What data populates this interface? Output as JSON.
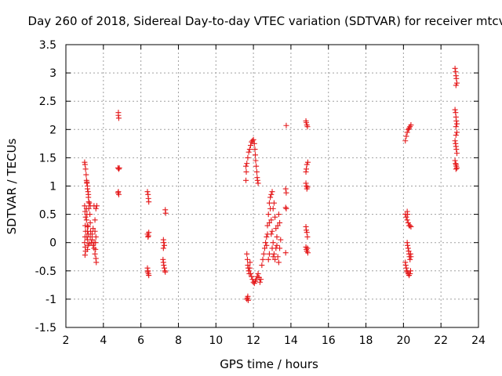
{
  "chart_data": {
    "type": "scatter",
    "title": "Day 260 of 2018, Sidereal Day-to-day VTEC variation (SDTVAR) for receiver mtcv",
    "xlabel": "GPS time / hours",
    "ylabel": "SDTVAR / TECUs",
    "xlim": [
      2,
      24
    ],
    "ylim": [
      -1.5,
      3.5
    ],
    "xticks": [
      2,
      4,
      6,
      8,
      10,
      12,
      14,
      16,
      18,
      20,
      22,
      24
    ],
    "yticks": [
      -1.5,
      -1,
      -0.5,
      0,
      0.5,
      1,
      1.5,
      2,
      2.5,
      3,
      3.5
    ],
    "xtick_labels": [
      "2",
      "4",
      "6",
      "8",
      "10",
      "12",
      "14",
      "16",
      "18",
      "20",
      "22",
      "24"
    ],
    "ytick_labels": [
      "-1.5",
      "-1",
      "-0.5",
      "0",
      "0.5",
      "1",
      "1.5",
      "2",
      "2.5",
      "3",
      "3.5"
    ],
    "grid": true,
    "marker": "plus",
    "color": "#e41a1c",
    "series": [
      {
        "name": "SDTVAR",
        "points": [
          [
            3.0,
            1.42
          ],
          [
            3.02,
            1.38
          ],
          [
            3.05,
            1.3
          ],
          [
            3.08,
            1.2
          ],
          [
            3.1,
            1.1
          ],
          [
            3.12,
            1.05
          ],
          [
            3.15,
            1.0
          ],
          [
            3.18,
            0.9
          ],
          [
            3.2,
            0.8
          ],
          [
            3.22,
            0.72
          ],
          [
            3.0,
            0.65
          ],
          [
            3.02,
            0.55
          ],
          [
            3.05,
            0.45
          ],
          [
            3.03,
            0.3
          ],
          [
            3.05,
            0.2
          ],
          [
            3.02,
            0.1
          ],
          [
            3.0,
            0.0
          ],
          [
            3.03,
            -0.08
          ],
          [
            3.05,
            -0.15
          ],
          [
            3.02,
            -0.22
          ],
          [
            3.1,
            0.6
          ],
          [
            3.12,
            0.5
          ],
          [
            3.1,
            0.4
          ],
          [
            3.14,
            0.3
          ],
          [
            3.15,
            0.2
          ],
          [
            3.12,
            0.1
          ],
          [
            3.16,
            0.05
          ],
          [
            3.18,
            -0.05
          ],
          [
            3.15,
            -0.12
          ],
          [
            3.2,
            0.15
          ],
          [
            3.25,
            0.7
          ],
          [
            3.3,
            0.65
          ],
          [
            3.28,
            0.5
          ],
          [
            3.3,
            0.35
          ],
          [
            3.32,
            0.2
          ],
          [
            3.3,
            0.1
          ],
          [
            3.35,
            0.0
          ],
          [
            3.4,
            0.05
          ],
          [
            3.45,
            -0.05
          ],
          [
            3.5,
            -0.1
          ],
          [
            3.55,
            -0.2
          ],
          [
            3.6,
            -0.28
          ],
          [
            3.62,
            -0.35
          ],
          [
            3.58,
            0.0
          ],
          [
            3.6,
            0.1
          ],
          [
            3.55,
            0.2
          ],
          [
            3.6,
            0.6
          ],
          [
            3.65,
            0.65
          ],
          [
            3.5,
            0.65
          ],
          [
            3.55,
            0.4
          ],
          [
            3.12,
            1.07
          ],
          [
            3.15,
            0.95
          ],
          [
            3.2,
            0.85
          ],
          [
            3.22,
            0.6
          ],
          [
            3.18,
            0.28
          ],
          [
            3.24,
            -0.02
          ],
          [
            3.4,
            0.15
          ],
          [
            3.45,
            0.25
          ],
          [
            3.5,
            0.0
          ],
          [
            3.58,
            -0.12
          ],
          [
            4.8,
            2.3
          ],
          [
            4.8,
            2.25
          ],
          [
            4.82,
            2.2
          ],
          [
            4.78,
            1.32
          ],
          [
            4.82,
            1.3
          ],
          [
            4.85,
            1.32
          ],
          [
            4.8,
            0.9
          ],
          [
            4.82,
            0.85
          ],
          [
            4.78,
            0.88
          ],
          [
            6.35,
            0.9
          ],
          [
            6.38,
            0.85
          ],
          [
            6.4,
            0.78
          ],
          [
            6.42,
            0.72
          ],
          [
            6.35,
            0.15
          ],
          [
            6.4,
            0.12
          ],
          [
            6.42,
            0.18
          ],
          [
            6.38,
            0.1
          ],
          [
            6.35,
            -0.45
          ],
          [
            6.38,
            -0.5
          ],
          [
            6.4,
            -0.55
          ],
          [
            6.42,
            -0.58
          ],
          [
            6.36,
            -0.52
          ],
          [
            7.2,
            0.05
          ],
          [
            7.22,
            0.0
          ],
          [
            7.25,
            -0.05
          ],
          [
            7.2,
            -0.1
          ],
          [
            7.18,
            -0.3
          ],
          [
            7.2,
            -0.35
          ],
          [
            7.22,
            -0.4
          ],
          [
            7.25,
            -0.45
          ],
          [
            7.28,
            -0.5
          ],
          [
            7.3,
            -0.52
          ],
          [
            7.3,
            0.58
          ],
          [
            7.32,
            0.52
          ],
          [
            11.6,
            1.35
          ],
          [
            11.65,
            1.4
          ],
          [
            11.7,
            1.5
          ],
          [
            11.75,
            1.6
          ],
          [
            11.8,
            1.65
          ],
          [
            11.85,
            1.72
          ],
          [
            11.9,
            1.78
          ],
          [
            11.95,
            1.8
          ],
          [
            12.0,
            1.82
          ],
          [
            12.05,
            1.75
          ],
          [
            12.08,
            1.65
          ],
          [
            12.1,
            1.55
          ],
          [
            12.12,
            1.45
          ],
          [
            12.15,
            1.35
          ],
          [
            12.18,
            1.25
          ],
          [
            12.2,
            1.15
          ],
          [
            12.22,
            1.1
          ],
          [
            12.25,
            1.05
          ],
          [
            11.6,
            1.1
          ],
          [
            11.62,
            1.25
          ],
          [
            11.65,
            -0.2
          ],
          [
            11.68,
            -0.3
          ],
          [
            11.7,
            -0.4
          ],
          [
            11.72,
            -0.45
          ],
          [
            11.75,
            -0.5
          ],
          [
            11.78,
            -0.55
          ],
          [
            11.8,
            -0.45
          ],
          [
            11.82,
            -0.35
          ],
          [
            11.85,
            -0.55
          ],
          [
            11.9,
            -0.6
          ],
          [
            11.95,
            -0.65
          ],
          [
            12.0,
            -0.7
          ],
          [
            12.05,
            -0.72
          ],
          [
            12.1,
            -0.68
          ],
          [
            12.15,
            -0.65
          ],
          [
            12.2,
            -0.6
          ],
          [
            12.25,
            -0.55
          ],
          [
            12.3,
            -0.62
          ],
          [
            12.35,
            -0.7
          ],
          [
            12.4,
            -0.65
          ],
          [
            11.65,
            -1.0
          ],
          [
            11.68,
            -0.98
          ],
          [
            11.7,
            -0.95
          ],
          [
            11.72,
            -1.02
          ],
          [
            12.45,
            -0.4
          ],
          [
            12.5,
            -0.3
          ],
          [
            12.55,
            -0.2
          ],
          [
            12.6,
            -0.1
          ],
          [
            12.65,
            0.0
          ],
          [
            12.7,
            0.1
          ],
          [
            12.75,
            0.3
          ],
          [
            12.8,
            0.5
          ],
          [
            12.85,
            0.7
          ],
          [
            12.9,
            0.8
          ],
          [
            12.95,
            0.85
          ],
          [
            13.0,
            0.9
          ],
          [
            12.9,
            0.6
          ],
          [
            12.95,
            0.4
          ],
          [
            13.0,
            0.2
          ],
          [
            13.05,
            0.0
          ],
          [
            13.1,
            -0.2
          ],
          [
            13.15,
            -0.3
          ],
          [
            13.2,
            -0.1
          ],
          [
            13.25,
            0.1
          ],
          [
            13.3,
            0.3
          ],
          [
            13.35,
            0.5
          ],
          [
            13.4,
            0.35
          ],
          [
            13.0,
            -0.1
          ],
          [
            12.85,
            -0.2
          ],
          [
            12.8,
            -0.3
          ],
          [
            13.05,
            0.6
          ],
          [
            13.1,
            0.7
          ],
          [
            13.15,
            0.45
          ],
          [
            13.2,
            0.25
          ],
          [
            13.25,
            -0.05
          ],
          [
            13.3,
            -0.25
          ],
          [
            13.35,
            -0.35
          ],
          [
            13.4,
            -0.1
          ],
          [
            13.45,
            0.05
          ],
          [
            12.7,
            -0.05
          ],
          [
            12.75,
            0.15
          ],
          [
            12.85,
            0.35
          ],
          [
            12.95,
            0.15
          ],
          [
            13.05,
            -0.25
          ],
          [
            13.75,
            2.07
          ],
          [
            13.72,
            0.95
          ],
          [
            13.75,
            0.88
          ],
          [
            13.72,
            0.62
          ],
          [
            13.75,
            0.6
          ],
          [
            13.72,
            -0.18
          ],
          [
            14.8,
            2.15
          ],
          [
            14.82,
            2.12
          ],
          [
            14.85,
            2.08
          ],
          [
            14.88,
            2.05
          ],
          [
            14.8,
            1.25
          ],
          [
            14.82,
            1.3
          ],
          [
            14.85,
            1.38
          ],
          [
            14.9,
            1.42
          ],
          [
            14.8,
            1.05
          ],
          [
            14.82,
            1.0
          ],
          [
            14.85,
            0.95
          ],
          [
            14.88,
            0.98
          ],
          [
            14.8,
            0.28
          ],
          [
            14.82,
            0.22
          ],
          [
            14.85,
            0.18
          ],
          [
            14.88,
            0.1
          ],
          [
            14.8,
            -0.08
          ],
          [
            14.82,
            -0.12
          ],
          [
            14.85,
            -0.15
          ],
          [
            14.88,
            -0.1
          ],
          [
            14.9,
            -0.18
          ],
          [
            20.1,
            1.8
          ],
          [
            20.15,
            1.88
          ],
          [
            20.2,
            1.95
          ],
          [
            20.25,
            2.0
          ],
          [
            20.3,
            2.02
          ],
          [
            20.35,
            2.05
          ],
          [
            20.4,
            2.08
          ],
          [
            20.1,
            0.5
          ],
          [
            20.15,
            0.45
          ],
          [
            20.2,
            0.4
          ],
          [
            20.25,
            0.35
          ],
          [
            20.3,
            0.3
          ],
          [
            20.2,
            0.55
          ],
          [
            20.22,
            0.5
          ],
          [
            20.35,
            0.3
          ],
          [
            20.4,
            0.28
          ],
          [
            20.2,
            0.0
          ],
          [
            20.22,
            -0.05
          ],
          [
            20.25,
            -0.1
          ],
          [
            20.28,
            -0.15
          ],
          [
            20.3,
            -0.2
          ],
          [
            20.32,
            -0.25
          ],
          [
            20.35,
            -0.3
          ],
          [
            20.38,
            -0.2
          ],
          [
            20.4,
            -0.25
          ],
          [
            20.1,
            -0.35
          ],
          [
            20.12,
            -0.4
          ],
          [
            20.15,
            -0.45
          ],
          [
            20.18,
            -0.5
          ],
          [
            20.2,
            -0.52
          ],
          [
            20.25,
            -0.55
          ],
          [
            20.3,
            -0.58
          ],
          [
            20.35,
            -0.55
          ],
          [
            20.38,
            -0.5
          ],
          [
            22.75,
            3.08
          ],
          [
            22.78,
            3.02
          ],
          [
            22.8,
            2.95
          ],
          [
            22.82,
            2.9
          ],
          [
            22.85,
            2.82
          ],
          [
            22.8,
            2.78
          ],
          [
            22.75,
            2.35
          ],
          [
            22.78,
            2.3
          ],
          [
            22.8,
            2.22
          ],
          [
            22.82,
            2.15
          ],
          [
            22.85,
            2.1
          ],
          [
            22.8,
            2.05
          ],
          [
            22.85,
            1.95
          ],
          [
            22.8,
            1.9
          ],
          [
            22.75,
            1.8
          ],
          [
            22.78,
            1.75
          ],
          [
            22.8,
            1.7
          ],
          [
            22.82,
            1.65
          ],
          [
            22.85,
            1.58
          ],
          [
            22.75,
            1.45
          ],
          [
            22.78,
            1.4
          ],
          [
            22.8,
            1.38
          ],
          [
            22.82,
            1.35
          ],
          [
            22.85,
            1.32
          ],
          [
            22.8,
            1.3
          ]
        ]
      }
    ]
  }
}
